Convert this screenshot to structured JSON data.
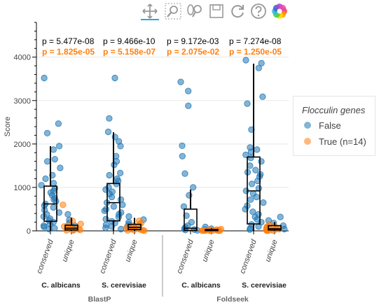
{
  "toolbar": {
    "tools": [
      {
        "name": "pan-tool",
        "icon": "pan-icon",
        "active": true
      },
      {
        "name": "box-zoom-tool",
        "icon": "box-zoom-icon",
        "active": false
      },
      {
        "name": "wheel-zoom-tool",
        "icon": "wheel-zoom-icon",
        "active": false
      },
      {
        "name": "save-tool",
        "icon": "save-icon",
        "active": false
      },
      {
        "name": "reset-tool",
        "icon": "reset-icon",
        "active": false
      },
      {
        "name": "help-tool",
        "icon": "help-icon",
        "active": false
      },
      {
        "name": "bokeh-logo",
        "icon": "bokeh-logo-icon",
        "active": false
      }
    ]
  },
  "legend": {
    "title": "Flocculin genes",
    "items": [
      {
        "label": "False",
        "color": "#1f77b4"
      },
      {
        "label": "True (n=14)",
        "color": "#ff7f0e"
      }
    ]
  },
  "chart_data": {
    "type": "scatter",
    "ylabel": "Score",
    "ylim": [
      0,
      4800
    ],
    "yticks": [
      0,
      1000,
      2000,
      3000,
      4000
    ],
    "grid": true,
    "legend_position": "right",
    "colors": {
      "False": "#1f77b4",
      "True": "#ff7f0e"
    },
    "group_labels": [
      "BlastP",
      "Foldseek"
    ],
    "species_labels": [
      "C. albicans",
      "S. cerevisiae",
      "C. albicans",
      "S. cerevisiae"
    ],
    "category_labels": [
      "conserved",
      "unique",
      "conserved",
      "unique",
      "conserved",
      "unique",
      "conserved",
      "unique"
    ],
    "pvalues": [
      {
        "black": "p = 5.477e-08",
        "orange": "p = 1.825e-05"
      },
      {
        "black": "p = 9.466e-10",
        "orange": "p = 5.158e-07"
      },
      {
        "black": "p = 9.172e-03",
        "orange": "p = 2.075e-02"
      },
      {
        "black": "p = 7.274e-08",
        "orange": "p = 1.250e-05"
      }
    ],
    "boxes": [
      {
        "q1": 220,
        "median": 620,
        "q3": 1030,
        "whisker_low": 0,
        "whisker_high": 1950
      },
      {
        "q1": 20,
        "median": 60,
        "q3": 130,
        "whisker_low": 0,
        "whisker_high": 300
      },
      {
        "q1": 230,
        "median": 650,
        "q3": 1090,
        "whisker_low": 0,
        "whisker_high": 2270
      },
      {
        "q1": 30,
        "median": 80,
        "q3": 150,
        "whisker_low": 0,
        "whisker_high": 300
      },
      {
        "q1": 10,
        "median": 60,
        "q3": 500,
        "whisker_low": 0,
        "whisker_high": 950
      },
      {
        "q1": 5,
        "median": 15,
        "q3": 30,
        "whisker_low": 0,
        "whisker_high": 60
      },
      {
        "q1": 160,
        "median": 920,
        "q3": 1700,
        "whisker_low": 0,
        "whisker_high": 3850
      },
      {
        "q1": 20,
        "median": 50,
        "q3": 120,
        "whisker_low": 0,
        "whisker_high": 200
      }
    ],
    "series": [
      {
        "name": "False",
        "points": [
          [
            0,
            3520
          ],
          [
            0,
            2470
          ],
          [
            0,
            2250
          ],
          [
            0,
            1950
          ],
          [
            0,
            1870
          ],
          [
            0,
            1650
          ],
          [
            0,
            1600
          ],
          [
            0,
            1450
          ],
          [
            0,
            1280
          ],
          [
            0,
            1200
          ],
          [
            0,
            1100
          ],
          [
            0,
            1050
          ],
          [
            0,
            980
          ],
          [
            0,
            920
          ],
          [
            0,
            880
          ],
          [
            0,
            820
          ],
          [
            0,
            760
          ],
          [
            0,
            720
          ],
          [
            0,
            680
          ],
          [
            0,
            620
          ],
          [
            0,
            580
          ],
          [
            0,
            540
          ],
          [
            0,
            480
          ],
          [
            0,
            420
          ],
          [
            0,
            380
          ],
          [
            0,
            330
          ],
          [
            0,
            280
          ],
          [
            0,
            240
          ],
          [
            0,
            200
          ],
          [
            0,
            160
          ],
          [
            0,
            120
          ],
          [
            0,
            90
          ],
          [
            0,
            60
          ],
          [
            0,
            40
          ],
          [
            1,
            380
          ],
          [
            1,
            250
          ],
          [
            1,
            180
          ],
          [
            1,
            120
          ],
          [
            1,
            80
          ],
          [
            1,
            50
          ],
          [
            1,
            30
          ],
          [
            2,
            3520
          ],
          [
            2,
            2590
          ],
          [
            2,
            2280
          ],
          [
            2,
            2160
          ],
          [
            2,
            2060
          ],
          [
            2,
            1950
          ],
          [
            2,
            1720
          ],
          [
            2,
            1600
          ],
          [
            2,
            1520
          ],
          [
            2,
            1330
          ],
          [
            2,
            1280
          ],
          [
            2,
            1200
          ],
          [
            2,
            1150
          ],
          [
            2,
            1080
          ],
          [
            2,
            1000
          ],
          [
            2,
            950
          ],
          [
            2,
            900
          ],
          [
            2,
            850
          ],
          [
            2,
            780
          ],
          [
            2,
            720
          ],
          [
            2,
            650
          ],
          [
            2,
            600
          ],
          [
            2,
            560
          ],
          [
            2,
            500
          ],
          [
            2,
            460
          ],
          [
            2,
            420
          ],
          [
            2,
            380
          ],
          [
            2,
            320
          ],
          [
            2,
            270
          ],
          [
            2,
            220
          ],
          [
            2,
            180
          ],
          [
            2,
            140
          ],
          [
            2,
            100
          ],
          [
            2,
            70
          ],
          [
            2,
            40
          ],
          [
            3,
            330
          ],
          [
            3,
            260
          ],
          [
            3,
            200
          ],
          [
            3,
            150
          ],
          [
            3,
            100
          ],
          [
            3,
            60
          ],
          [
            4,
            3430
          ],
          [
            4,
            3220
          ],
          [
            4,
            2880
          ],
          [
            4,
            1960
          ],
          [
            4,
            1720
          ],
          [
            4,
            1320
          ],
          [
            4,
            1000
          ],
          [
            4,
            820
          ],
          [
            4,
            560
          ],
          [
            4,
            350
          ],
          [
            4,
            200
          ],
          [
            4,
            120
          ],
          [
            4,
            80
          ],
          [
            4,
            50
          ],
          [
            4,
            30
          ],
          [
            4,
            20
          ],
          [
            4,
            10
          ],
          [
            5,
            90
          ],
          [
            5,
            50
          ],
          [
            5,
            30
          ],
          [
            6,
            3930
          ],
          [
            6,
            3860
          ],
          [
            6,
            3750
          ],
          [
            6,
            3090
          ],
          [
            6,
            2930
          ],
          [
            6,
            2330
          ],
          [
            6,
            1920
          ],
          [
            6,
            1870
          ],
          [
            6,
            1820
          ],
          [
            6,
            1750
          ],
          [
            6,
            1680
          ],
          [
            6,
            1600
          ],
          [
            6,
            1500
          ],
          [
            6,
            1400
          ],
          [
            6,
            1350
          ],
          [
            6,
            1300
          ],
          [
            6,
            1250
          ],
          [
            6,
            1150
          ],
          [
            6,
            1080
          ],
          [
            6,
            980
          ],
          [
            6,
            920
          ],
          [
            6,
            860
          ],
          [
            6,
            780
          ],
          [
            6,
            720
          ],
          [
            6,
            650
          ],
          [
            6,
            580
          ],
          [
            6,
            500
          ],
          [
            6,
            440
          ],
          [
            6,
            380
          ],
          [
            6,
            320
          ],
          [
            6,
            260
          ],
          [
            6,
            200
          ],
          [
            6,
            150
          ],
          [
            6,
            100
          ],
          [
            6,
            60
          ],
          [
            6,
            30
          ],
          [
            7,
            320
          ],
          [
            7,
            240
          ],
          [
            7,
            180
          ],
          [
            7,
            120
          ],
          [
            7,
            70
          ],
          [
            7,
            40
          ]
        ]
      },
      {
        "name": "True (n=14)",
        "points": [
          [
            1,
            600
          ],
          [
            1,
            230
          ],
          [
            1,
            160
          ],
          [
            1,
            120
          ],
          [
            1,
            100
          ],
          [
            1,
            80
          ],
          [
            1,
            70
          ],
          [
            1,
            60
          ],
          [
            1,
            50
          ],
          [
            1,
            40
          ],
          [
            1,
            30
          ],
          [
            1,
            20
          ],
          [
            1,
            15
          ],
          [
            1,
            10
          ],
          [
            3,
            230
          ],
          [
            3,
            180
          ],
          [
            3,
            150
          ],
          [
            3,
            120
          ],
          [
            3,
            100
          ],
          [
            3,
            80
          ],
          [
            3,
            60
          ],
          [
            3,
            50
          ],
          [
            3,
            40
          ],
          [
            3,
            30
          ],
          [
            3,
            20
          ],
          [
            3,
            15
          ],
          [
            3,
            10
          ],
          [
            3,
            5
          ],
          [
            5,
            40
          ],
          [
            5,
            30
          ],
          [
            5,
            25
          ],
          [
            5,
            20
          ],
          [
            5,
            15
          ],
          [
            5,
            12
          ],
          [
            5,
            10
          ],
          [
            5,
            8
          ],
          [
            5,
            6
          ],
          [
            5,
            5
          ],
          [
            5,
            4
          ],
          [
            5,
            3
          ],
          [
            5,
            2
          ],
          [
            5,
            1
          ],
          [
            7,
            150
          ],
          [
            7,
            120
          ],
          [
            7,
            100
          ],
          [
            7,
            80
          ],
          [
            7,
            60
          ],
          [
            7,
            50
          ],
          [
            7,
            40
          ],
          [
            7,
            30
          ],
          [
            7,
            25
          ],
          [
            7,
            20
          ],
          [
            7,
            15
          ],
          [
            7,
            10
          ],
          [
            7,
            5
          ],
          [
            7,
            2
          ]
        ]
      }
    ]
  }
}
